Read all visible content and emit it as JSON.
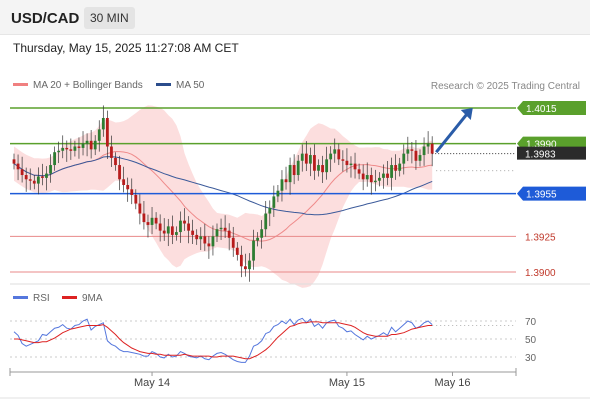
{
  "header": {
    "symbol": "USD/CAD",
    "timeframe": "30 MIN"
  },
  "timestamp": "Thursday, May 15, 2025 11:27:08 AM CET",
  "legend": {
    "main": [
      {
        "label": "MA 20 + Bollinger Bands",
        "color": "#f08080"
      },
      {
        "label": "MA 50",
        "color": "#2b4d8c"
      }
    ],
    "rsi": [
      {
        "label": "RSI",
        "color": "#5577dd"
      },
      {
        "label": "9MA",
        "color": "#dd2222"
      }
    ]
  },
  "credit": "Research © 2025 Trading Central",
  "colors": {
    "up": "#2e7d32",
    "down": "#b71c1c",
    "resistance": "#5aa02c",
    "pivot": "#1e5bd8",
    "support": "#e88a8a",
    "arrow": "#2a5ca8"
  },
  "chart_data": {
    "type": "candlestick",
    "ylim": [
      1.3893,
      1.4022
    ],
    "x_labels": [
      {
        "label": "May 14",
        "index": 34
      },
      {
        "label": "May 15",
        "index": 82
      },
      {
        "label": "May 16",
        "index": 108
      }
    ],
    "levels": [
      {
        "value": 1.4015,
        "label": "1.4015",
        "kind": "resistance"
      },
      {
        "value": 1.399,
        "label": "1.3990",
        "kind": "resistance"
      },
      {
        "value": 1.3983,
        "label": "1.3983",
        "kind": "current"
      },
      {
        "value": 1.3955,
        "label": "1.3955",
        "kind": "pivot"
      },
      {
        "value": 1.3925,
        "label": "1.3925",
        "kind": "support"
      },
      {
        "value": 1.39,
        "label": "1.3900",
        "kind": "support"
      }
    ],
    "arrow": {
      "from": {
        "index": 104,
        "value": 1.3984
      },
      "to": {
        "index": 113,
        "value": 1.4015
      }
    },
    "close": [
      1.3976,
      1.3972,
      1.3968,
      1.3965,
      1.3964,
      1.3962,
      1.3967,
      1.3966,
      1.3969,
      1.3975,
      1.3984,
      1.3985,
      1.3987,
      1.3986,
      1.3985,
      1.3988,
      1.3987,
      1.399,
      1.3992,
      1.3986,
      1.3992,
      1.4,
      1.4008,
      1.3988,
      1.398,
      1.3975,
      1.3965,
      1.3961,
      1.3958,
      1.3954,
      1.3948,
      1.3941,
      1.3935,
      1.3933,
      1.3938,
      1.3934,
      1.3929,
      1.3927,
      1.3932,
      1.3926,
      1.3928,
      1.3936,
      1.3934,
      1.3929,
      1.3926,
      1.3923,
      1.3925,
      1.392,
      1.3918,
      1.3925,
      1.393,
      1.3931,
      1.3929,
      1.3924,
      1.3917,
      1.3912,
      1.3904,
      1.3902,
      1.3908,
      1.3922,
      1.3924,
      1.393,
      1.3941,
      1.3945,
      1.3953,
      1.3957,
      1.3965,
      1.3963,
      1.3975,
      1.3968,
      1.3978,
      1.3983,
      1.3976,
      1.3982,
      1.3971,
      1.3975,
      1.397,
      1.3979,
      1.3983,
      1.3986,
      1.3979,
      1.3978,
      1.3975,
      1.3976,
      1.3972,
      1.3969,
      1.3965,
      1.3968,
      1.3963,
      1.3964,
      1.3966,
      1.3969,
      1.3966,
      1.3975,
      1.3971,
      1.3976,
      1.3983,
      1.3986,
      1.3985,
      1.3978,
      1.3982,
      1.3988,
      1.399,
      1.3983
    ]
  },
  "rsi_chart": {
    "type": "line",
    "ylim": [
      20,
      80
    ],
    "ticks": [
      "70",
      "50",
      "30"
    ],
    "rsi": [
      58,
      54,
      45,
      42,
      44,
      46,
      48,
      55,
      54,
      58,
      62,
      63,
      66,
      62,
      61,
      65,
      66,
      70,
      72,
      60,
      64,
      66,
      68,
      48,
      44,
      42,
      38,
      36,
      36,
      35,
      34,
      33,
      31,
      31,
      36,
      34,
      30,
      29,
      33,
      30,
      31,
      36,
      34,
      31,
      30,
      29,
      31,
      28,
      27,
      31,
      34,
      35,
      33,
      30,
      27,
      25,
      24,
      24,
      31,
      42,
      44,
      48,
      56,
      58,
      64,
      66,
      70,
      67,
      72,
      66,
      71,
      73,
      68,
      72,
      64,
      67,
      62,
      68,
      70,
      71,
      64,
      62,
      58,
      59,
      55,
      52,
      49,
      53,
      50,
      52,
      54,
      57,
      54,
      63,
      58,
      62,
      66,
      70,
      68,
      62,
      64,
      68,
      70,
      66
    ],
    "ma9": [
      50,
      50,
      49,
      48,
      47,
      46,
      46,
      47,
      47,
      49,
      51,
      54,
      57,
      59,
      61,
      62,
      63,
      64,
      65,
      65,
      65,
      65,
      66,
      63,
      59,
      55,
      50,
      46,
      43,
      40,
      38,
      36,
      35,
      34,
      34,
      33,
      33,
      32,
      32,
      32,
      32,
      32,
      33,
      32,
      31,
      31,
      31,
      31,
      31,
      30,
      30,
      31,
      31,
      31,
      31,
      30,
      29,
      28,
      28,
      30,
      32,
      35,
      38,
      42,
      47,
      52,
      56,
      60,
      64,
      65,
      67,
      68,
      68,
      69,
      69,
      69,
      68,
      68,
      68,
      68,
      68,
      67,
      66,
      65,
      63,
      60,
      57,
      55,
      54,
      53,
      53,
      53,
      53,
      55,
      55,
      56,
      57,
      59,
      61,
      62,
      63,
      64,
      65,
      65
    ]
  }
}
